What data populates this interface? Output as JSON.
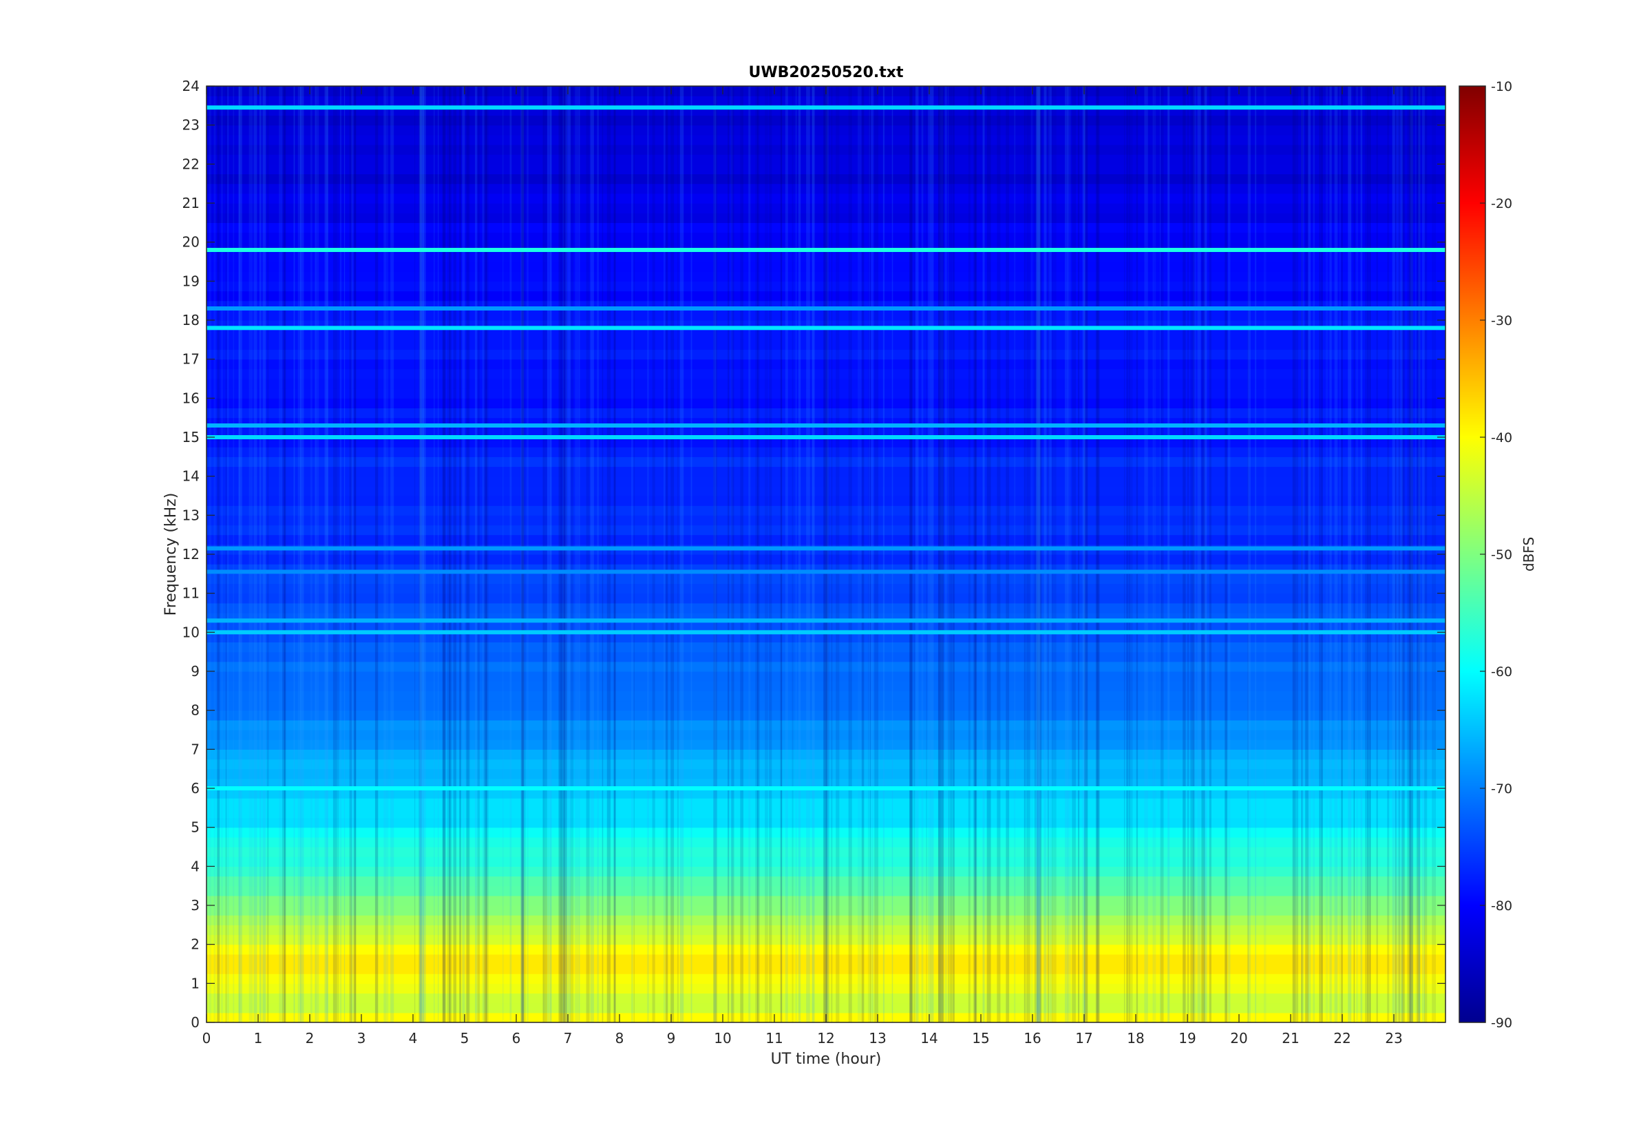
{
  "chart_data": {
    "type": "heatmap",
    "title": "UWB20250520.txt",
    "xlabel": "UT time (hour)",
    "ylabel": "Frequency (kHz)",
    "xlim": [
      0,
      24
    ],
    "ylim": [
      0,
      24
    ],
    "x_ticks": [
      "0",
      "1",
      "2",
      "3",
      "4",
      "5",
      "6",
      "7",
      "8",
      "9",
      "10",
      "11",
      "12",
      "13",
      "14",
      "15",
      "16",
      "17",
      "18",
      "19",
      "20",
      "21",
      "22",
      "23"
    ],
    "y_ticks": [
      "0",
      "1",
      "2",
      "3",
      "4",
      "5",
      "6",
      "7",
      "8",
      "9",
      "10",
      "11",
      "12",
      "13",
      "14",
      "15",
      "16",
      "17",
      "18",
      "19",
      "20",
      "21",
      "22",
      "23",
      "24"
    ],
    "colorbar": {
      "label": "dBFS",
      "range": [
        -90,
        -10
      ],
      "ticks": [
        "-10",
        "-20",
        "-30",
        "-40",
        "-50",
        "-60",
        "-70",
        "-80",
        "-90"
      ],
      "colormap": "jet"
    },
    "grid": false,
    "intensity_profile_by_frequency_khz": [
      {
        "freq": 0.1,
        "dbfs": -40
      },
      {
        "freq": 0.5,
        "dbfs": -45
      },
      {
        "freq": 1.0,
        "dbfs": -42
      },
      {
        "freq": 1.6,
        "dbfs": -37
      },
      {
        "freq": 2.0,
        "dbfs": -43
      },
      {
        "freq": 3.0,
        "dbfs": -50
      },
      {
        "freq": 4.0,
        "dbfs": -56
      },
      {
        "freq": 5.0,
        "dbfs": -61
      },
      {
        "freq": 6.0,
        "dbfs": -64
      },
      {
        "freq": 7.0,
        "dbfs": -68
      },
      {
        "freq": 9.0,
        "dbfs": -72
      },
      {
        "freq": 12.0,
        "dbfs": -76
      },
      {
        "freq": 16.0,
        "dbfs": -78
      },
      {
        "freq": 19.0,
        "dbfs": -79
      },
      {
        "freq": 21.0,
        "dbfs": -82
      },
      {
        "freq": 24.0,
        "dbfs": -84
      }
    ],
    "horizontal_lines": [
      {
        "freq": 23.45,
        "dbfs": -63
      },
      {
        "freq": 19.8,
        "dbfs": -58
      },
      {
        "freq": 18.3,
        "dbfs": -68
      },
      {
        "freq": 17.8,
        "dbfs": -62
      },
      {
        "freq": 15.3,
        "dbfs": -66
      },
      {
        "freq": 15.0,
        "dbfs": -63
      },
      {
        "freq": 12.15,
        "dbfs": -68
      },
      {
        "freq": 11.55,
        "dbfs": -69
      },
      {
        "freq": 10.3,
        "dbfs": -66
      },
      {
        "freq": 10.0,
        "dbfs": -64
      },
      {
        "freq": 6.0,
        "dbfs": -60
      }
    ]
  }
}
